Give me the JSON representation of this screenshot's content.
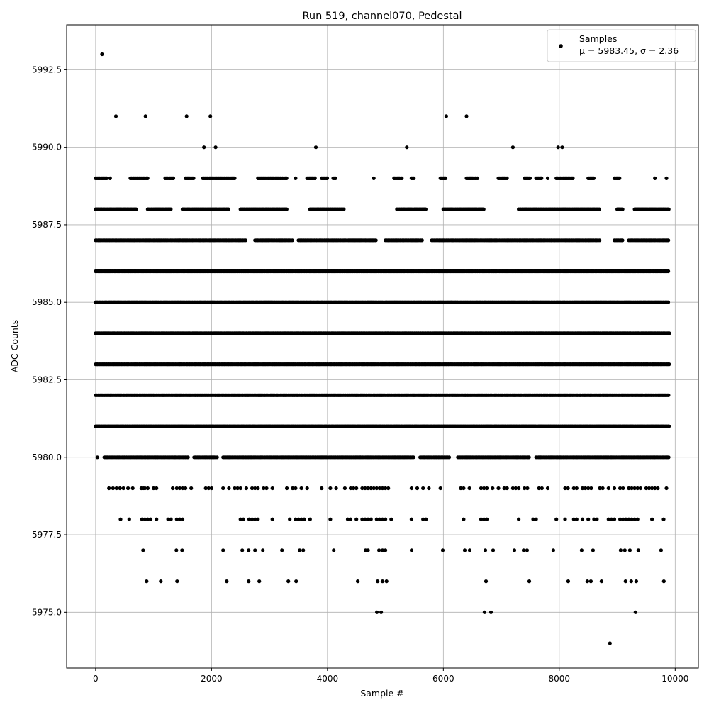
{
  "chart_data": {
    "type": "scatter",
    "title": "Run 519, channel070, Pedestal",
    "xlabel": "Sample #",
    "ylabel": "ADC Counts",
    "xlim": [
      -500,
      10400
    ],
    "ylim": [
      5973.2,
      5993.95
    ],
    "x_ticks": [
      0,
      2000,
      4000,
      6000,
      8000,
      10000
    ],
    "x_tick_labels": [
      "0",
      "2000",
      "4000",
      "6000",
      "8000",
      "10000"
    ],
    "y_ticks": [
      5975.0,
      5977.5,
      5980.0,
      5982.5,
      5985.0,
      5987.5,
      5990.0,
      5992.5
    ],
    "y_tick_labels": [
      "5975.0",
      "5977.5",
      "5980.0",
      "5982.5",
      "5985.0",
      "5987.5",
      "5990.0",
      "5992.5"
    ],
    "grid": true,
    "legend": {
      "placement": "top-right",
      "label": "Samples",
      "stats": "μ = 5983.45, σ = 2.36"
    },
    "marker_color": "#000000",
    "series": [
      {
        "name": "Samples",
        "levels": [
          {
            "y": 5993,
            "x": [
              110
            ]
          },
          {
            "y": 5991,
            "x": [
              350,
              860,
              1570,
              1980,
              6050,
              6400
            ]
          },
          {
            "y": 5990,
            "x": [
              1870,
              2070,
              3800,
              5370,
              7200,
              7980,
              8050
            ]
          },
          {
            "y": 5989,
            "x_ranges": [
              [
                0,
                200
              ],
              [
                600,
                900
              ],
              [
                1200,
                1350
              ],
              [
                1550,
                1700
              ],
              [
                1850,
                2400
              ],
              [
                2800,
                3300
              ],
              [
                3650,
                3800
              ],
              [
                3900,
                4000
              ],
              [
                4100,
                4150
              ],
              [
                5150,
                5300
              ],
              [
                5450,
                5500
              ],
              [
                5950,
                6050
              ],
              [
                6400,
                6600
              ],
              [
                6950,
                7100
              ],
              [
                7400,
                7500
              ],
              [
                7600,
                7700
              ],
              [
                7950,
                8250
              ],
              [
                8500,
                8600
              ],
              [
                8950,
                9050
              ]
            ],
            "x": [
              250,
              3450,
              4800,
              7800,
              9650,
              9850
            ]
          },
          {
            "y": 5988,
            "x_ranges": [
              [
                0,
                700
              ],
              [
                900,
                1300
              ],
              [
                1500,
                2300
              ],
              [
                2500,
                3300
              ],
              [
                3700,
                4300
              ],
              [
                5200,
                5700
              ],
              [
                6000,
                6700
              ],
              [
                7300,
                8700
              ],
              [
                9000,
                9100
              ],
              [
                9300,
                9900
              ]
            ]
          },
          {
            "y": 5987,
            "x_ranges": [
              [
                0,
                2600
              ],
              [
                2750,
                3400
              ],
              [
                3500,
                4850
              ],
              [
                5000,
                5650
              ],
              [
                5800,
                8700
              ],
              [
                8950,
                9100
              ],
              [
                9200,
                9900
              ]
            ]
          },
          {
            "y": 5986,
            "x_ranges": [
              [
                0,
                9900
              ]
            ]
          },
          {
            "y": 5985,
            "x_ranges": [
              [
                0,
                9900
              ]
            ]
          },
          {
            "y": 5984,
            "x_ranges": [
              [
                0,
                9900
              ]
            ]
          },
          {
            "y": 5983,
            "x_ranges": [
              [
                0,
                9900
              ]
            ]
          },
          {
            "y": 5982,
            "x_ranges": [
              [
                0,
                9900
              ]
            ]
          },
          {
            "y": 5981,
            "x_ranges": [
              [
                0,
                9900
              ]
            ]
          },
          {
            "y": 5980,
            "x_ranges": [
              [
                150,
                1600
              ],
              [
                1700,
                2100
              ],
              [
                2200,
                5500
              ],
              [
                5600,
                6100
              ],
              [
                6250,
                7500
              ],
              [
                7600,
                9900
              ]
            ],
            "x": [
              30
            ]
          },
          {
            "y": 5979,
            "x": [
              230,
              300,
              360,
              420,
              480,
              560,
              640,
              790,
              820,
              850,
              900,
              1000,
              1050,
              1330,
              1400,
              1450,
              1500,
              1550,
              1650,
              1900,
              1950,
              2000,
              2200,
              2300,
              2400,
              2450,
              2500,
              2600,
              2700,
              2750,
              2800,
              2900,
              2950,
              3050,
              3300,
              3400,
              3450,
              3550,
              3650,
              3900,
              4050,
              4150,
              4300,
              4400,
              4450,
              4500,
              4600,
              4650,
              4700,
              4750,
              4800,
              4850,
              4900,
              4950,
              5000,
              5050,
              5450,
              5550,
              5650,
              5750,
              5950,
              6300,
              6350,
              6450,
              6650,
              6700,
              6750,
              6850,
              6950,
              7050,
              7100,
              7200,
              7250,
              7300,
              7400,
              7450,
              7650,
              7700,
              7800,
              8100,
              8150,
              8250,
              8300,
              8400,
              8450,
              8500,
              8550,
              8700,
              8750,
              8850,
              8950,
              9050,
              9100,
              9200,
              9250,
              9300,
              9350,
              9400,
              9500,
              9550,
              9600,
              9650,
              9700,
              9850
            ]
          },
          {
            "y": 5978,
            "x": [
              430,
              580,
              800,
              850,
              900,
              950,
              1050,
              1250,
              1300,
              1400,
              1450,
              1500,
              2500,
              2550,
              2650,
              2700,
              2750,
              2800,
              3050,
              3350,
              3450,
              3500,
              3550,
              3600,
              3700,
              4050,
              4350,
              4400,
              4500,
              4600,
              4650,
              4700,
              4750,
              4850,
              4900,
              4950,
              5000,
              5100,
              5450,
              5650,
              5700,
              6350,
              6650,
              6700,
              6750,
              7300,
              7550,
              7600,
              7950,
              8100,
              8250,
              8300,
              8400,
              8500,
              8600,
              8650,
              8850,
              8900,
              8950,
              9050,
              9100,
              9150,
              9200,
              9250,
              9300,
              9350,
              9600,
              9800
            ]
          },
          {
            "y": 5977,
            "x": [
              819,
              1394,
              1491,
              2200,
              2530,
              2640,
              2750,
              2885,
              3215,
              3521,
              3582,
              4108,
              4658,
              4700,
              4890,
              4950,
              5000,
              5452,
              5990,
              6369,
              6455,
              6724,
              6858,
              7225,
              7384,
              7445,
              7897,
              8386,
              8582,
              9059,
              9132,
              9218,
              9364,
              9756
            ]
          },
          {
            "y": 5976,
            "x": [
              880,
              1125,
              1406,
              2262,
              2640,
              2824,
              3325,
              3460,
              4523,
              4866,
              4950,
              5020,
              6736,
              7482,
              8154,
              8484,
              8545,
              8729,
              9144,
              9242,
              9328,
              9804
            ]
          },
          {
            "y": 5975,
            "x": [
              4853,
              4927,
              6711,
              6822,
              9315
            ]
          },
          {
            "y": 5974,
            "x": [
              8875
            ]
          }
        ]
      }
    ]
  }
}
